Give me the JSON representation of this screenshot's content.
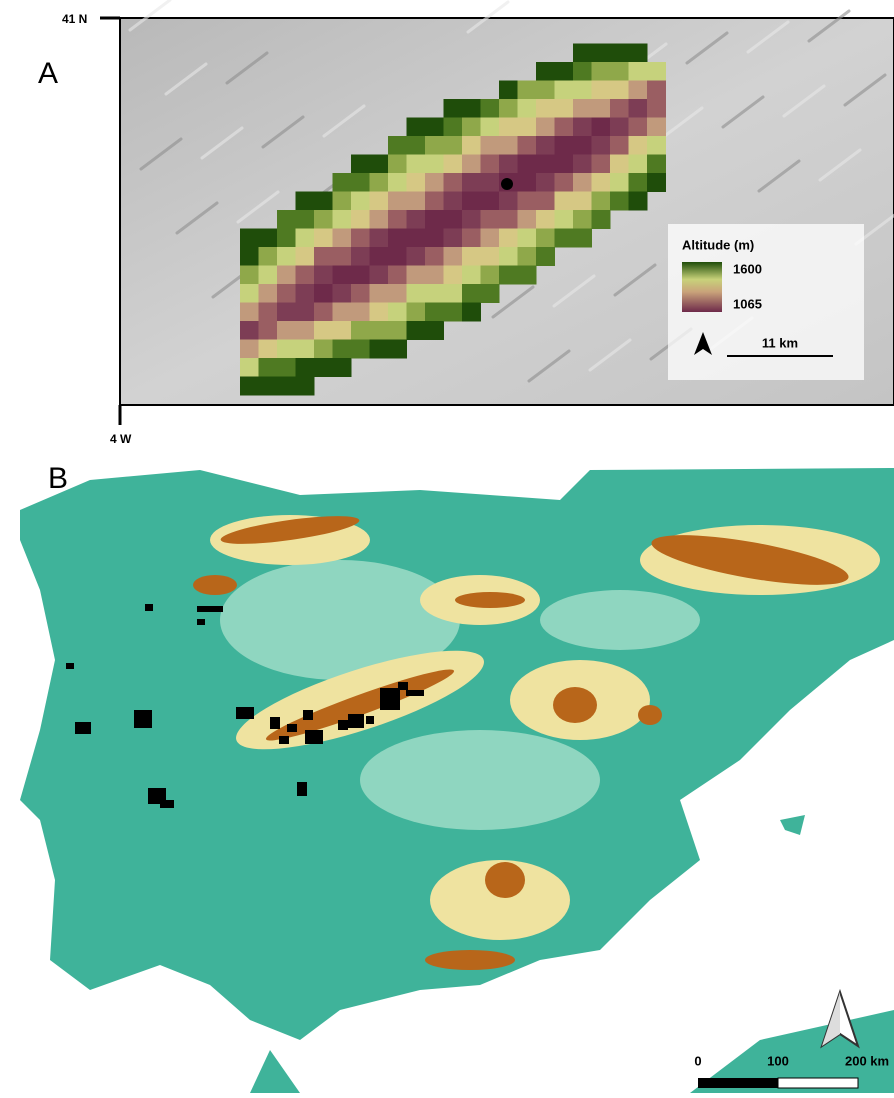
{
  "panel_a": {
    "label": "A",
    "lat_tick": "41 N",
    "lon_tick": "4 W",
    "legend": {
      "title": "Altitude (m)",
      "max": "1600",
      "min": "1065"
    },
    "scale": "11 km"
  },
  "panel_b": {
    "label": "B",
    "scale": {
      "ticks": [
        "0",
        "100",
        "200 km"
      ]
    }
  }
}
